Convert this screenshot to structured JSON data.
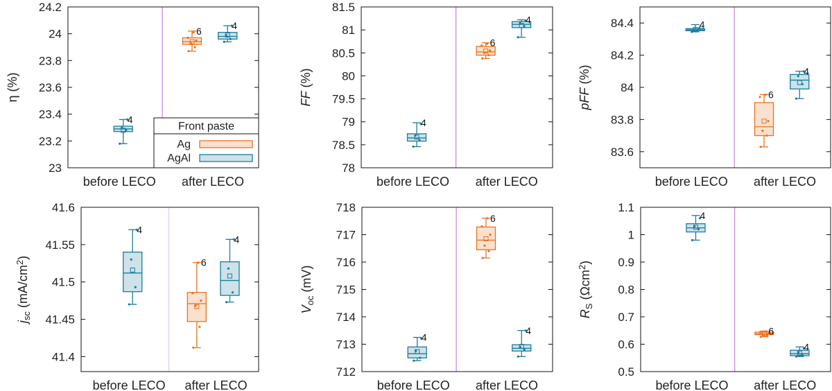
{
  "colors": {
    "Ag": "#e8731e",
    "AgAl": "#1b7c9c",
    "divider": "#c98be0"
  },
  "legend": {
    "title": "Front paste",
    "entries": [
      "Ag",
      "AgAl"
    ]
  },
  "chart_data": [
    {
      "type": "box",
      "ylabel": "η (%)",
      "ylim": [
        23,
        24.2
      ],
      "yticks": [
        23,
        23.2,
        23.4,
        23.6,
        23.8,
        24,
        24.2
      ],
      "ytick_labels": [
        "23",
        "23.2",
        "23.4",
        "23.6",
        "23.8",
        "24",
        "24.2"
      ],
      "categories": [
        "before LECO",
        "after LECO"
      ],
      "legend": true,
      "boxes": [
        {
          "cat": 0,
          "slot": 0,
          "series": "AgAl",
          "min": 23.18,
          "q1": 23.27,
          "median": 23.29,
          "q3": 23.31,
          "max": 23.36,
          "mean": 23.28,
          "n": 4,
          "points": [
            23.18,
            23.28,
            23.3,
            23.36
          ]
        },
        {
          "cat": 1,
          "slot": 0,
          "series": "Ag",
          "min": 23.87,
          "q1": 23.92,
          "median": 23.94,
          "q3": 23.97,
          "max": 24.02,
          "mean": 23.94,
          "n": 6,
          "points": [
            23.87,
            23.9,
            23.93,
            23.95,
            23.97,
            24.01
          ]
        },
        {
          "cat": 1,
          "slot": 1,
          "series": "AgAl",
          "min": 23.94,
          "q1": 23.96,
          "median": 23.98,
          "q3": 24.01,
          "max": 24.06,
          "mean": 23.99,
          "n": 4,
          "points": [
            23.94,
            23.96,
            23.99,
            24.06
          ]
        }
      ]
    },
    {
      "type": "box",
      "ylabel": "FF (%)",
      "ylim": [
        78,
        81.5
      ],
      "yticks": [
        78,
        78.5,
        79,
        79.5,
        80,
        80.5,
        81,
        81.5
      ],
      "ytick_labels": [
        "78",
        "78.5",
        "79",
        "79.5",
        "80",
        "80.5",
        "81",
        "81.5"
      ],
      "categories": [
        "before LECO",
        "after LECO"
      ],
      "boxes": [
        {
          "cat": 0,
          "slot": 0,
          "series": "AgAl",
          "min": 78.46,
          "q1": 78.58,
          "median": 78.65,
          "q3": 78.74,
          "max": 78.98,
          "mean": 78.67,
          "n": 4,
          "points": [
            78.46,
            78.6,
            78.7,
            78.95
          ]
        },
        {
          "cat": 1,
          "slot": 0,
          "series": "Ag",
          "min": 80.38,
          "q1": 80.45,
          "median": 80.52,
          "q3": 80.64,
          "max": 80.72,
          "mean": 80.54,
          "n": 6,
          "points": [
            80.38,
            80.45,
            80.5,
            80.55,
            80.66,
            80.7
          ]
        },
        {
          "cat": 1,
          "slot": 1,
          "series": "AgAl",
          "min": 80.84,
          "q1": 81.05,
          "median": 81.12,
          "q3": 81.18,
          "max": 81.22,
          "mean": 81.1,
          "n": 4,
          "points": [
            80.84,
            81.08,
            81.15,
            81.2
          ]
        }
      ]
    },
    {
      "type": "box",
      "ylabel": "pFF (%)",
      "ylim": [
        83.5,
        84.5
      ],
      "yticks": [
        83.6,
        83.8,
        84,
        84.2,
        84.4
      ],
      "ytick_labels": [
        "83.6",
        "83.8",
        "84",
        "84.2",
        "84.4"
      ],
      "categories": [
        "before LECO",
        "after LECO"
      ],
      "boxes": [
        {
          "cat": 0,
          "slot": 0,
          "series": "AgAl",
          "min": 84.345,
          "q1": 84.352,
          "median": 84.358,
          "q3": 84.365,
          "max": 84.39,
          "mean": 84.36,
          "n": 4,
          "points": [
            84.345,
            84.355,
            84.36,
            84.37
          ]
        },
        {
          "cat": 1,
          "slot": 0,
          "series": "Ag",
          "min": 83.63,
          "q1": 83.7,
          "median": 83.755,
          "q3": 83.905,
          "max": 83.955,
          "mean": 83.79,
          "n": 6,
          "points": [
            83.63,
            83.7,
            83.73,
            83.79,
            83.94,
            83.955
          ]
        },
        {
          "cat": 1,
          "slot": 1,
          "series": "AgAl",
          "min": 83.93,
          "q1": 83.99,
          "median": 84.045,
          "q3": 84.08,
          "max": 84.1,
          "mean": 84.03,
          "n": 4,
          "points": [
            83.93,
            84.02,
            84.07,
            84.1
          ]
        }
      ]
    },
    {
      "type": "box",
      "ylabel": "jsc (mA/cm2)",
      "ylim": [
        41.38,
        41.6
      ],
      "yticks": [
        41.4,
        41.45,
        41.5,
        41.55,
        41.6
      ],
      "ytick_labels": [
        "41.4",
        "41.45",
        "41.5",
        "41.55",
        "41.6"
      ],
      "categories": [
        "before LECO",
        "after LECO"
      ],
      "boxes": [
        {
          "cat": 0,
          "slot": 0,
          "series": "AgAl",
          "min": 41.47,
          "q1": 41.487,
          "median": 41.512,
          "q3": 41.54,
          "max": 41.57,
          "mean": 41.516,
          "n": 4,
          "points": [
            41.47,
            41.493,
            41.53,
            41.57
          ]
        },
        {
          "cat": 1,
          "slot": 0,
          "series": "Ag",
          "min": 41.412,
          "q1": 41.447,
          "median": 41.471,
          "q3": 41.486,
          "max": 41.526,
          "mean": 41.467,
          "n": 6,
          "points": [
            41.412,
            41.44,
            41.468,
            41.475,
            41.485,
            41.526
          ]
        },
        {
          "cat": 1,
          "slot": 1,
          "series": "AgAl",
          "min": 41.473,
          "q1": 41.482,
          "median": 41.502,
          "q3": 41.527,
          "max": 41.557,
          "mean": 41.508,
          "n": 4,
          "points": [
            41.473,
            41.486,
            41.518,
            41.557
          ]
        }
      ]
    },
    {
      "type": "box",
      "ylabel": "Voc (mV)",
      "ylim": [
        712,
        718
      ],
      "yticks": [
        712,
        713,
        714,
        715,
        716,
        717,
        718
      ],
      "ytick_labels": [
        "712",
        "713",
        "714",
        "715",
        "716",
        "717",
        "718"
      ],
      "categories": [
        "before LECO",
        "after LECO"
      ],
      "boxes": [
        {
          "cat": 0,
          "slot": 0,
          "series": "AgAl",
          "min": 712.4,
          "q1": 712.5,
          "median": 712.65,
          "q3": 712.9,
          "max": 713.25,
          "mean": 712.73,
          "n": 4,
          "points": [
            712.4,
            712.5,
            712.75,
            713.2
          ]
        },
        {
          "cat": 1,
          "slot": 0,
          "series": "Ag",
          "min": 716.15,
          "q1": 716.45,
          "median": 716.8,
          "q3": 717.28,
          "max": 717.6,
          "mean": 716.85,
          "n": 6,
          "points": [
            716.15,
            716.4,
            716.6,
            717.0,
            717.3,
            717.6
          ]
        },
        {
          "cat": 1,
          "slot": 1,
          "series": "AgAl",
          "min": 712.55,
          "q1": 712.75,
          "median": 712.85,
          "q3": 712.98,
          "max": 713.5,
          "mean": 712.92,
          "n": 4,
          "points": [
            712.55,
            712.8,
            712.9,
            713.5
          ]
        }
      ]
    },
    {
      "type": "box",
      "ylabel": "RS (Ωcm2)",
      "ylim": [
        0.5,
        1.1
      ],
      "yticks": [
        0.5,
        0.6,
        0.7,
        0.8,
        0.9,
        1,
        1.1
      ],
      "ytick_labels": [
        "0.5",
        "0.6",
        "0.7",
        "0.8",
        "0.9",
        "1",
        "1.1"
      ],
      "categories": [
        "before LECO",
        "after LECO"
      ],
      "boxes": [
        {
          "cat": 0,
          "slot": 0,
          "series": "AgAl",
          "min": 0.98,
          "q1": 1.01,
          "median": 1.025,
          "q3": 1.04,
          "max": 1.07,
          "mean": 1.027,
          "n": 4,
          "points": [
            0.98,
            1.02,
            1.03,
            1.06
          ]
        },
        {
          "cat": 1,
          "slot": 0,
          "series": "Ag",
          "min": 0.627,
          "q1": 0.635,
          "median": 0.638,
          "q3": 0.644,
          "max": 0.648,
          "mean": 0.638,
          "n": 6,
          "points": [
            0.627,
            0.632,
            0.636,
            0.64,
            0.644,
            0.647
          ]
        },
        {
          "cat": 1,
          "slot": 1,
          "series": "AgAl",
          "min": 0.555,
          "q1": 0.558,
          "median": 0.565,
          "q3": 0.578,
          "max": 0.59,
          "mean": 0.568,
          "n": 4,
          "points": [
            0.555,
            0.56,
            0.57,
            0.585
          ]
        }
      ]
    }
  ]
}
